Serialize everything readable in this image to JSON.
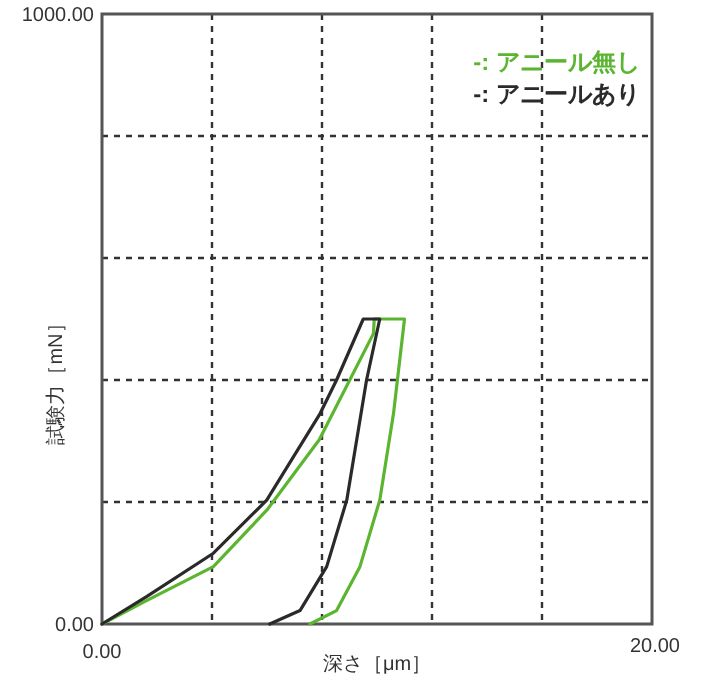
{
  "chart_data": {
    "type": "line",
    "xlabel": "深さ［μm］",
    "ylabel": "試験力［mN］",
    "xlim": [
      0,
      20
    ],
    "ylim": [
      0,
      1000
    ],
    "xticks": [
      {
        "value": 0,
        "label": "0.00"
      },
      {
        "value": 4,
        "label": null
      },
      {
        "value": 8,
        "label": null
      },
      {
        "value": 12,
        "label": null
      },
      {
        "value": 16,
        "label": null
      },
      {
        "value": 20,
        "label": "20.00"
      }
    ],
    "yticks": [
      {
        "value": 0,
        "label": "0.00"
      },
      {
        "value": 200,
        "label": null
      },
      {
        "value": 400,
        "label": null
      },
      {
        "value": 600,
        "label": null
      },
      {
        "value": 800,
        "label": null
      },
      {
        "value": 1000,
        "label": "1000.00"
      }
    ],
    "grid": true,
    "legend": "top right",
    "line_style": "solid",
    "marker": "none",
    "series": [
      {
        "name": "-: アニール無し",
        "color": "#5cb531",
        "x": [
          0,
          1.6,
          4.05,
          6.0,
          7.9,
          9.87,
          9.9,
          11.0,
          10.6,
          10.1,
          9.38,
          8.53,
          7.56
        ],
        "values": [
          0,
          38,
          94,
          187,
          302,
          476,
          500,
          500,
          345,
          203,
          94,
          22,
          0
        ]
      },
      {
        "name": "-: アニールあり",
        "color": "#2a2a2a",
        "x": [
          0,
          1.62,
          4.05,
          5.99,
          7.93,
          8.53,
          9.5,
          10.1,
          9.62,
          8.9,
          8.17,
          7.2,
          6.1
        ],
        "values": [
          0,
          45,
          116,
          203,
          345,
          400,
          500,
          500,
          400,
          203,
          94,
          22,
          0
        ]
      }
    ]
  }
}
